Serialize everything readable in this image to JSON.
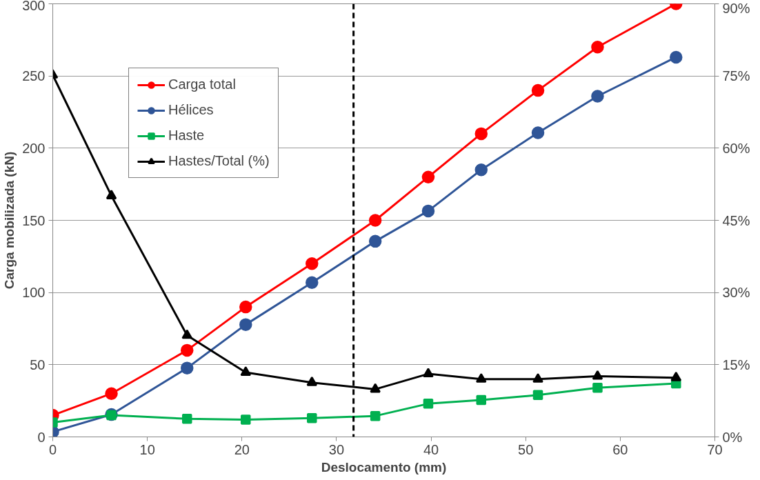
{
  "chart_data": {
    "type": "line",
    "xlabel": "Deslocamento (mm)",
    "ylabel": "Carga mobilizada (kN)",
    "xlim": [
      0,
      70
    ],
    "xticks": [
      0,
      10,
      20,
      30,
      40,
      50,
      60,
      70
    ],
    "ylim": [
      0,
      300
    ],
    "yticks": [
      0,
      50,
      100,
      150,
      200,
      250,
      300
    ],
    "y2lim": [
      0,
      90
    ],
    "y2ticks": [
      {
        "value": 0,
        "label": "0%"
      },
      {
        "value": 15,
        "label": "15%"
      },
      {
        "value": 30,
        "label": "30%"
      },
      {
        "value": 45,
        "label": "45%"
      },
      {
        "value": 60,
        "label": "60%"
      },
      {
        "value": 75,
        "label": "75%"
      },
      {
        "value": 90,
        "label": "90%"
      }
    ],
    "x": [
      0,
      6.2,
      14.2,
      20.4,
      27.4,
      34.1,
      39.7,
      45.3,
      51.3,
      57.6,
      65.9
    ],
    "grid": "y",
    "legend": "top left",
    "line_style": "solid",
    "ref_lines": [
      {
        "axis": "x",
        "value": 31.8,
        "label": null,
        "color": "#000000",
        "line_style": "dashed"
      }
    ],
    "series": [
      {
        "name": "Carga total",
        "color": "#ff0000",
        "marker": "circle",
        "values": [
          15,
          30,
          60,
          90,
          120,
          150,
          180,
          210,
          240,
          270,
          300
        ]
      },
      {
        "name": "Hélices",
        "color": "#2f5597",
        "marker": "circle",
        "values": [
          3.5,
          15.5,
          47.7,
          77.8,
          106.9,
          135.5,
          156.5,
          185,
          210.7,
          236,
          263
        ]
      },
      {
        "name": "Haste",
        "color": "#00b050",
        "marker": "square",
        "values": [
          10,
          15,
          12.5,
          12,
          13,
          14.5,
          23,
          25.5,
          29,
          34,
          37
        ]
      },
      {
        "name": "Hastes/Total (%)",
        "color": "#000000",
        "marker": "triangle",
        "axis": "y2",
        "values": [
          75.2,
          50.1,
          21.1,
          13.4,
          11.3,
          9.9,
          13.1,
          12.0,
          12.0,
          12.6,
          12.3
        ]
      }
    ]
  }
}
